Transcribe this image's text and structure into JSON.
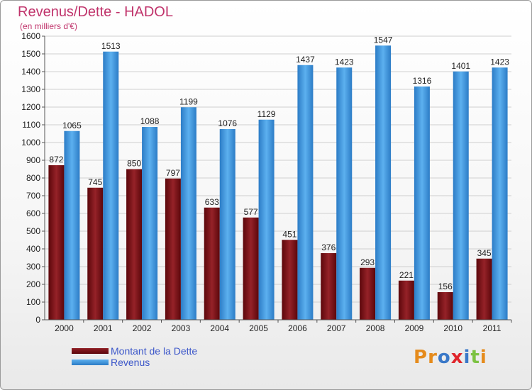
{
  "header": {
    "title": "Revenus/Dette - HADOL",
    "subtitle": "(en milliers d'€)"
  },
  "chart_data": {
    "type": "bar",
    "title": "Revenus/Dette - HADOL",
    "subtitle": "(en milliers d'€)",
    "xlabel": "",
    "ylabel": "",
    "ylim": [
      0,
      1600
    ],
    "ytick_step": 100,
    "grid": true,
    "categories": [
      "2000",
      "2001",
      "2002",
      "2003",
      "2004",
      "2005",
      "2006",
      "2007",
      "2008",
      "2009",
      "2010",
      "2011"
    ],
    "series": [
      {
        "name": "Montant de la Dette",
        "color": "#7a0f14",
        "values": [
          872,
          745,
          850,
          797,
          633,
          577,
          451,
          376,
          293,
          221,
          156,
          345
        ]
      },
      {
        "name": "Revenus",
        "color": "#3c93dc",
        "values": [
          1065,
          1513,
          1088,
          1199,
          1076,
          1129,
          1437,
          1423,
          1547,
          1316,
          1401,
          1423
        ]
      }
    ],
    "legend_position": "bottom-left"
  },
  "legend": {
    "items": [
      {
        "label": "Montant de la Dette",
        "color": "#6e0a0e"
      },
      {
        "label": "Revenus",
        "color": "#3c93dc"
      }
    ]
  },
  "brand": {
    "logo_letters": [
      "P",
      "r",
      "o",
      "x",
      "i",
      "t",
      "i"
    ],
    "logo_colors": [
      "#e58b1c",
      "#e58b1c",
      "#3a78c8",
      "#e0252b",
      "#3a78c8",
      "#7cc242",
      "#e58b1c"
    ]
  }
}
